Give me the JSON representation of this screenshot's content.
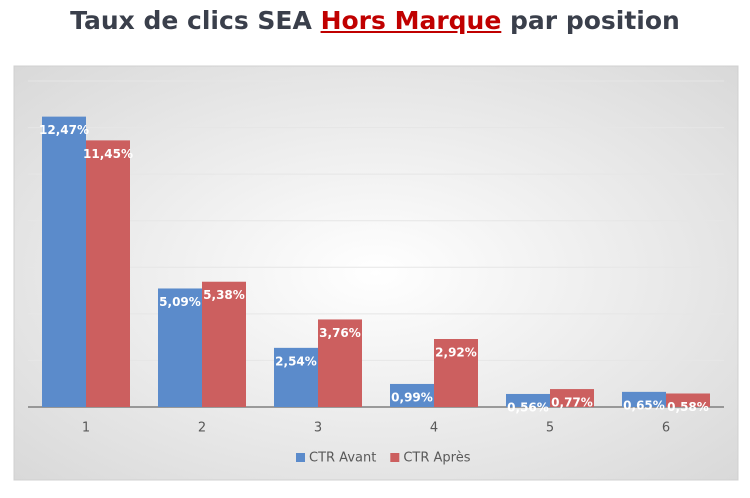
{
  "chart_data": {
    "type": "bar",
    "title": [
      "Taux de clics SEA",
      "Hors Marque",
      "par position"
    ],
    "title_highlight_color": "#c00000",
    "categories": [
      "1",
      "2",
      "3",
      "4",
      "5",
      "6"
    ],
    "series": [
      {
        "name": "CTR Avant",
        "color": "#5b8bcb",
        "values": [
          12.47,
          5.09,
          2.54,
          0.99,
          0.56,
          0.65
        ],
        "value_labels": [
          "12,47%",
          "5,09%",
          "2,54%",
          "0,99%",
          "0,56%",
          "0,65%"
        ]
      },
      {
        "name": "CTR Après",
        "color": "#cc5f5f",
        "values": [
          11.45,
          5.38,
          3.76,
          2.92,
          0.77,
          0.58
        ],
        "value_labels": [
          "11,45%",
          "5,38%",
          "3,76%",
          "2,92%",
          "0,77%",
          "0,58%"
        ]
      }
    ],
    "ylim": [
      0,
      14
    ],
    "yticks": [
      0,
      2,
      4,
      6,
      8,
      10,
      12,
      14
    ],
    "grid": true,
    "legend": "bottom"
  }
}
